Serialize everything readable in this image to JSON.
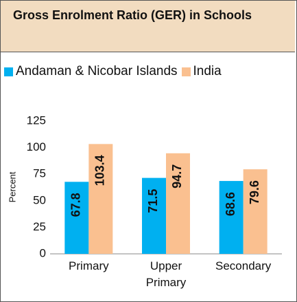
{
  "chart_data": {
    "type": "bar",
    "title": "Gross Enrolment Ratio (GER) in Schools",
    "y_label": "Percent",
    "categories": [
      "Primary",
      "Upper Primary",
      "Secondary"
    ],
    "series": [
      {
        "name": "Andaman & Nicobar Islands",
        "color": "#00b0f0",
        "values": [
          67.8,
          71.5,
          68.6
        ]
      },
      {
        "name": "India",
        "color": "#fac090",
        "values": [
          103.4,
          94.7,
          79.6
        ]
      }
    ],
    "ylim": [
      0,
      125
    ],
    "yticks": [
      0,
      25,
      50,
      75,
      100,
      125
    ],
    "grid": false,
    "legend": "top"
  }
}
